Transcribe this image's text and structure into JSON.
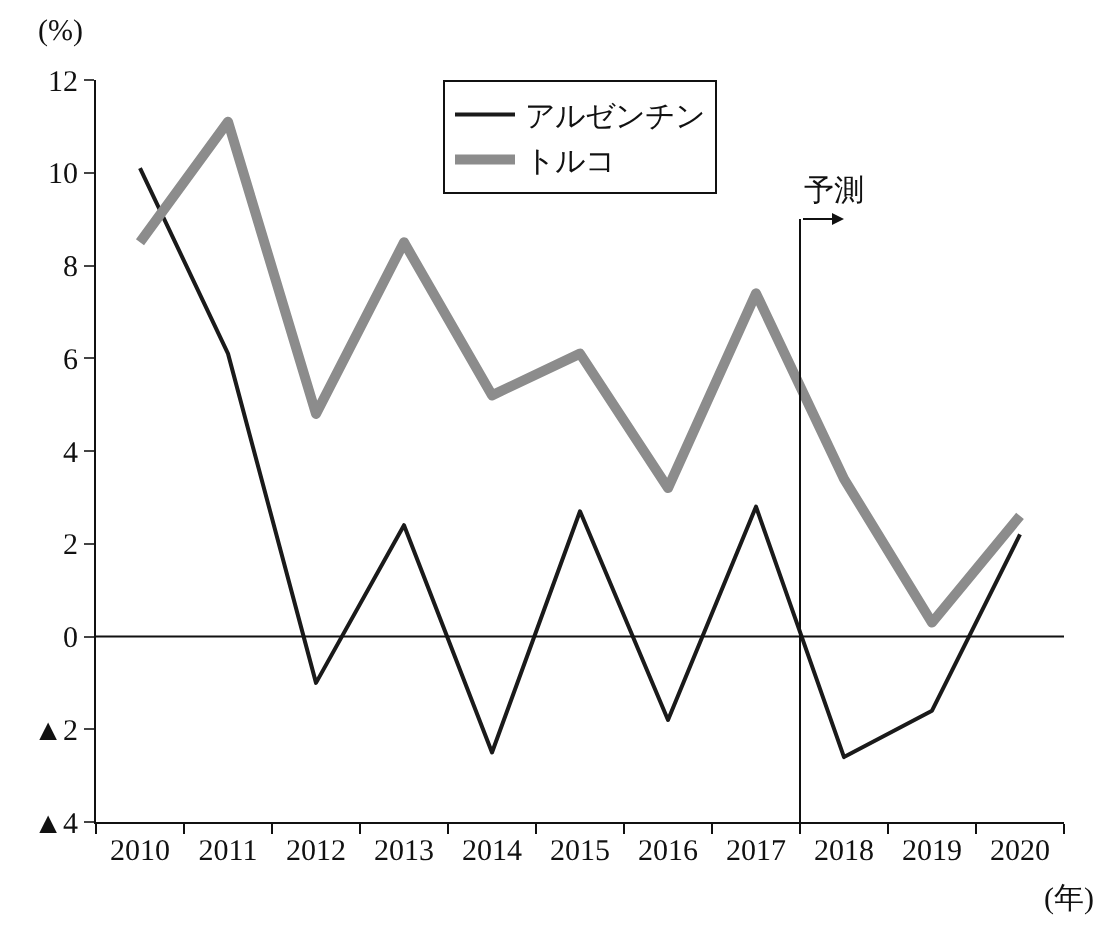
{
  "chart_data": {
    "type": "line",
    "x": [
      2010,
      2011,
      2012,
      2013,
      2014,
      2015,
      2016,
      2017,
      2018,
      2019,
      2020
    ],
    "series": [
      {
        "name": "アルゼンチン",
        "color": "#1a1a1a",
        "values": [
          10.1,
          6.1,
          -1.0,
          2.4,
          -2.5,
          2.7,
          -1.8,
          2.8,
          -2.6,
          -1.6,
          2.2
        ]
      },
      {
        "name": "トルコ",
        "color": "#8c8c8c",
        "values": [
          8.5,
          11.1,
          4.8,
          8.5,
          5.2,
          6.1,
          3.2,
          7.4,
          3.4,
          0.3,
          2.6
        ]
      }
    ],
    "ylabel": "(%)",
    "xlabel": "(年)",
    "xlim": [
      2009.5,
      2020.5
    ],
    "xticks": [
      2010,
      2011,
      2012,
      2013,
      2014,
      2015,
      2016,
      2017,
      2018,
      2019,
      2020
    ],
    "ylim": [
      -4,
      12
    ],
    "yticks": [
      {
        "value": -4,
        "label": "▲4"
      },
      {
        "value": -2,
        "label": "▲2"
      },
      0,
      2,
      4,
      6,
      8,
      10,
      12
    ],
    "ref_lines": [
      {
        "axis": "x",
        "value": 2017.5,
        "label": "予測"
      },
      {
        "axis": "y",
        "value": 0
      }
    ],
    "legend": "top",
    "grid": false,
    "marker": "none",
    "line_style": "solid"
  }
}
